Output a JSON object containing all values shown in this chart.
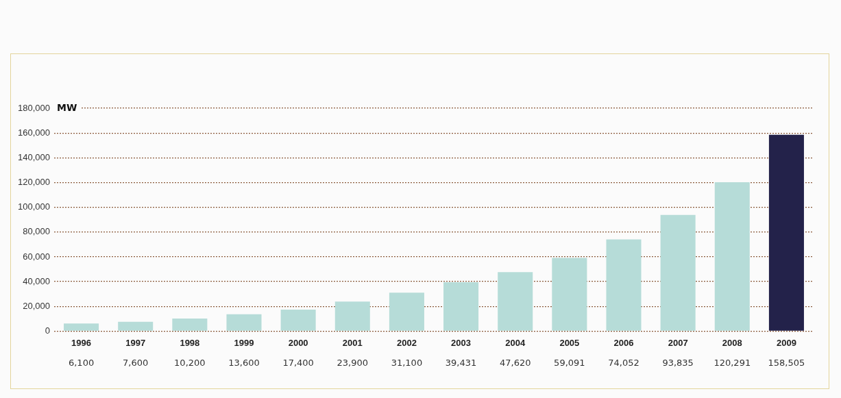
{
  "chart_data": {
    "type": "bar",
    "ylabel": "MW",
    "categories": [
      "1996",
      "1997",
      "1998",
      "1999",
      "2000",
      "2001",
      "2002",
      "2003",
      "2004",
      "2005",
      "2006",
      "2007",
      "2008",
      "2009"
    ],
    "values": [
      6100,
      7600,
      10200,
      13600,
      17400,
      23900,
      31100,
      39431,
      47620,
      59091,
      74052,
      93835,
      120291,
      158505
    ],
    "colors": [
      "#b6dcd8",
      "#b6dcd8",
      "#b6dcd8",
      "#b6dcd8",
      "#b6dcd8",
      "#b6dcd8",
      "#b6dcd8",
      "#b6dcd8",
      "#b6dcd8",
      "#b6dcd8",
      "#b6dcd8",
      "#b6dcd8",
      "#b6dcd8",
      "#23224a"
    ],
    "value_labels": [
      "6,100",
      "7,600",
      "10,200",
      "13,600",
      "17,400",
      "23,900",
      "31,100",
      "39,431",
      "47,620",
      "59,091",
      "74,052",
      "93,835",
      "120,291",
      "158,505"
    ],
    "ylim": [
      0,
      180000
    ],
    "yticks": [
      {
        "value": 0,
        "label": "0"
      },
      {
        "value": 20000,
        "label": "20,000"
      },
      {
        "value": 40000,
        "label": "40,000"
      },
      {
        "value": 60000,
        "label": "60,000"
      },
      {
        "value": 80000,
        "label": "80,000"
      },
      {
        "value": 100000,
        "label": "100,000"
      },
      {
        "value": 120000,
        "label": "120,000"
      },
      {
        "value": 140000,
        "label": "140,000"
      },
      {
        "value": 160000,
        "label": "160,000"
      },
      {
        "value": 180000,
        "label": "180,000"
      }
    ],
    "grid": "y",
    "legend": false
  }
}
